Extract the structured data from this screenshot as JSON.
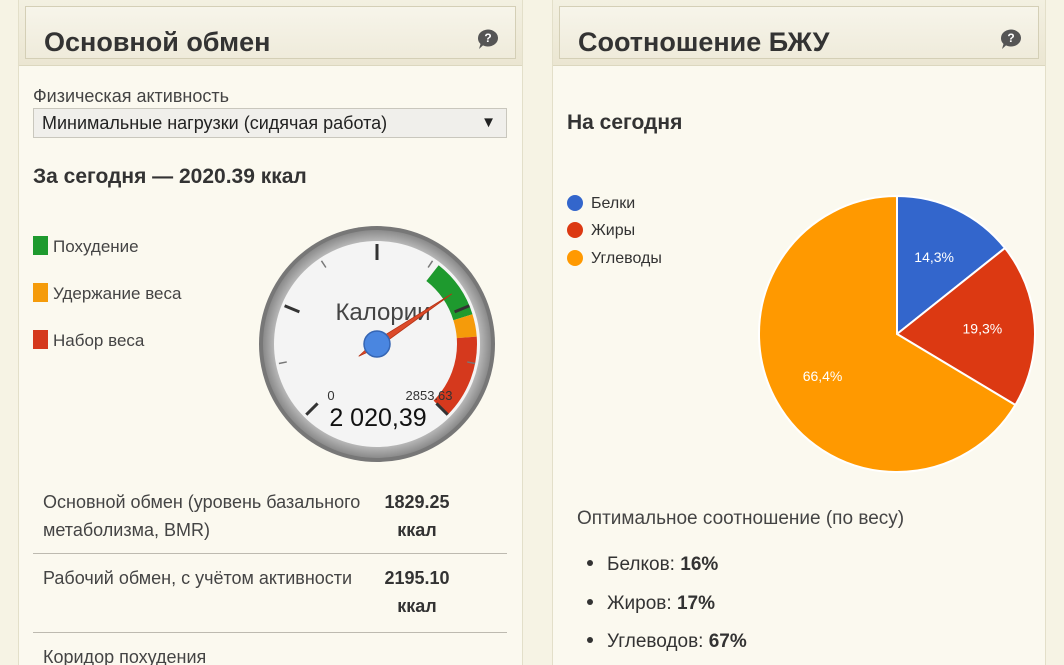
{
  "left_panel": {
    "title": "Основной обмен",
    "activity_label": "Физическая активность",
    "activity_select": {
      "value": "Минимальные нагрузки (сидячая работа)",
      "arrow": "▼"
    },
    "today_summary": "За сегодня — 2020.39 ккал",
    "legend": [
      {
        "label": "Похудение",
        "color": "#1e9a2e"
      },
      {
        "label": "Удержание веса",
        "color": "#f59b0a"
      },
      {
        "label": "Набор веса",
        "color": "#d5391d"
      }
    ],
    "gauge": {
      "label": "Калории",
      "min_label": "0",
      "max_label": "2853.63",
      "min": 0,
      "max": 2853.63,
      "value": 2020.39,
      "value_text": "2 020,39",
      "zones": [
        {
          "name": "Похудение",
          "from": 1829.25,
          "to": 2195.1,
          "color": "#1e9a2e"
        },
        {
          "name": "Удержание веса",
          "from": 2195.1,
          "to": 2333.13,
          "color": "#f59b0a"
        },
        {
          "name": "Набор веса",
          "from": 2333.13,
          "to": 2853.63,
          "color": "#d5391d"
        }
      ]
    },
    "stats": [
      {
        "label": "Основной обмен (уровень базального метаболизма, BMR)",
        "value": "1829.25 ккал"
      },
      {
        "label": "Рабочий обмен, с учётом активности",
        "value": "2195.10 ккал"
      },
      {
        "label": "Коридор похудения",
        "value": ""
      }
    ]
  },
  "right_panel": {
    "title": "Соотношение БЖУ",
    "subtitle": "На сегодня",
    "chart_data": {
      "type": "pie",
      "title": "",
      "legend_position": "top-left",
      "slices": [
        {
          "label": "Белки",
          "value": 14.3,
          "value_text": "14,3%",
          "color": "#3366cc"
        },
        {
          "label": "Жиры",
          "value": 19.3,
          "value_text": "19,3%",
          "color": "#dc3912"
        },
        {
          "label": "Углеводы",
          "value": 66.4,
          "value_text": "66,4%",
          "color": "#ff9900"
        }
      ]
    },
    "optimal_title": "Оптимальное соотношение (по весу)",
    "optimal": [
      {
        "label": "Белков:",
        "value": "16%"
      },
      {
        "label": "Жиров:",
        "value": "17%"
      },
      {
        "label": "Углеводов:",
        "value": "67%"
      }
    ]
  }
}
